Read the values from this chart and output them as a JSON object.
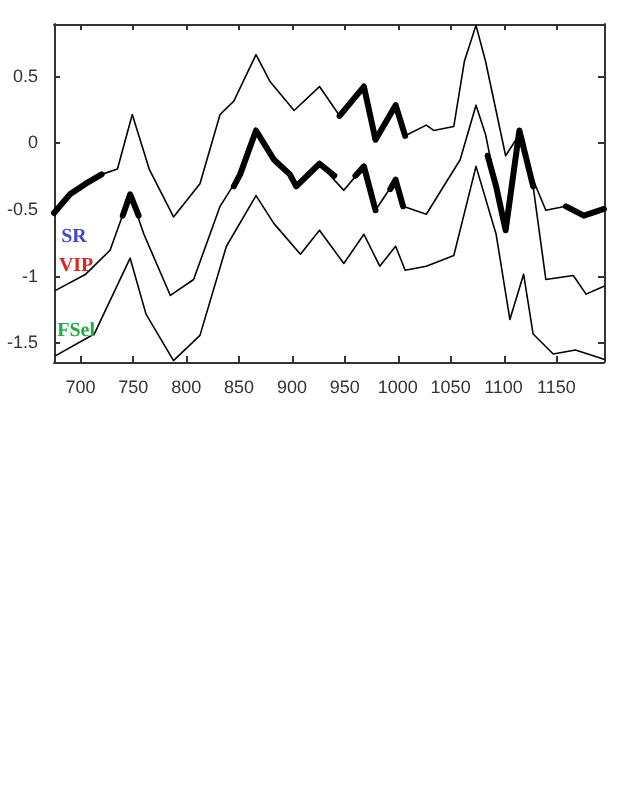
{
  "chart_data": {
    "type": "line",
    "xlim": [
      675,
      1195
    ],
    "ylim": [
      -1.65,
      0.89
    ],
    "xticks": [
      700,
      750,
      800,
      850,
      900,
      950,
      1000,
      1050,
      1100,
      1150
    ],
    "yticks": [
      -1.5,
      -1,
      -0.5,
      0,
      0.5
    ],
    "grid": false,
    "legend": false,
    "marker": "none",
    "line_style": "solid",
    "series": [
      {
        "name": "SR",
        "color": "#000000",
        "x": [
          675,
          690,
          705,
          720,
          735,
          749,
          765,
          788,
          813,
          832,
          845,
          866,
          879,
          902,
          926,
          945,
          968,
          979,
          998,
          1007,
          1027,
          1034,
          1053,
          1063,
          1074,
          1083,
          1102,
          1115,
          1128,
          1140,
          1159,
          1176,
          1195
        ],
        "values": [
          -0.53,
          -0.39,
          -0.31,
          -0.24,
          -0.2,
          0.21,
          -0.2,
          -0.56,
          -0.31,
          0.21,
          0.31,
          0.66,
          0.46,
          0.24,
          0.42,
          0.2,
          0.42,
          0.02,
          0.28,
          0.05,
          0.13,
          0.09,
          0.12,
          0.61,
          0.88,
          0.61,
          -0.1,
          0.06,
          -0.28,
          -0.51,
          -0.48,
          -0.55,
          -0.5
        ]
      },
      {
        "name": "VIP",
        "color": "#000000",
        "x": [
          677,
          705,
          728,
          747,
          760,
          785,
          807,
          832,
          851,
          866,
          883,
          898,
          904,
          926,
          949,
          968,
          979,
          998,
          1005,
          1027,
          1059,
          1074,
          1083,
          1093,
          1102,
          1115,
          1128,
          1140,
          1166,
          1178,
          1195
        ],
        "values": [
          -1.11,
          -0.99,
          -0.81,
          -0.39,
          -0.69,
          -1.15,
          -1.03,
          -0.48,
          -0.24,
          0.09,
          -0.13,
          -0.24,
          -0.33,
          -0.16,
          -0.36,
          -0.18,
          -0.51,
          -0.28,
          -0.48,
          -0.54,
          -0.13,
          0.28,
          0.06,
          -0.33,
          -0.66,
          0.09,
          -0.33,
          -1.03,
          -1.0,
          -1.14,
          -1.08
        ]
      },
      {
        "name": "FSel",
        "color": "#000000",
        "x": [
          677,
          713,
          747,
          762,
          788,
          813,
          838,
          866,
          883,
          908,
          926,
          949,
          968,
          983,
          998,
          1007,
          1027,
          1053,
          1074,
          1093,
          1106,
          1119,
          1128,
          1147,
          1168,
          1195
        ],
        "values": [
          -1.6,
          -1.44,
          -0.87,
          -1.29,
          -1.64,
          -1.45,
          -0.78,
          -0.4,
          -0.61,
          -0.84,
          -0.66,
          -0.91,
          -0.69,
          -0.93,
          -0.78,
          -0.96,
          -0.93,
          -0.85,
          -0.18,
          -0.69,
          -1.33,
          -0.99,
          -1.44,
          -1.59,
          -1.56,
          -1.63
        ]
      },
      {
        "color": "#000000",
        "x": [
          675,
          690,
          705,
          720
        ],
        "values": [
          -0.53,
          -0.39,
          -0.31,
          -0.24
        ]
      },
      {
        "color": "#000000",
        "x": [
          945,
          968,
          979,
          998,
          1007
        ],
        "values": [
          0.2,
          0.42,
          0.02,
          0.28,
          0.05
        ]
      },
      {
        "color": "#000000",
        "x": [
          1159,
          1176,
          1195
        ],
        "values": [
          -0.48,
          -0.55,
          -0.5
        ]
      },
      {
        "color": "#000000",
        "x": [
          740,
          747,
          755
        ],
        "values": [
          -0.55,
          -0.39,
          -0.55
        ]
      },
      {
        "color": "#000000",
        "x": [
          845,
          851,
          866,
          883,
          898,
          904,
          926,
          940
        ],
        "values": [
          -0.33,
          -0.24,
          0.09,
          -0.13,
          -0.24,
          -0.33,
          -0.16,
          -0.25
        ]
      },
      {
        "color": "#000000",
        "x": [
          960,
          968,
          979
        ],
        "values": [
          -0.25,
          -0.18,
          -0.51
        ]
      },
      {
        "color": "#000000",
        "x": [
          993,
          998,
          1005
        ],
        "values": [
          -0.35,
          -0.28,
          -0.48
        ]
      },
      {
        "color": "#000000",
        "x": [
          1085,
          1093,
          1102,
          1115,
          1128
        ],
        "values": [
          -0.1,
          -0.33,
          -0.66,
          0.09,
          -0.33
        ]
      }
    ]
  }
}
